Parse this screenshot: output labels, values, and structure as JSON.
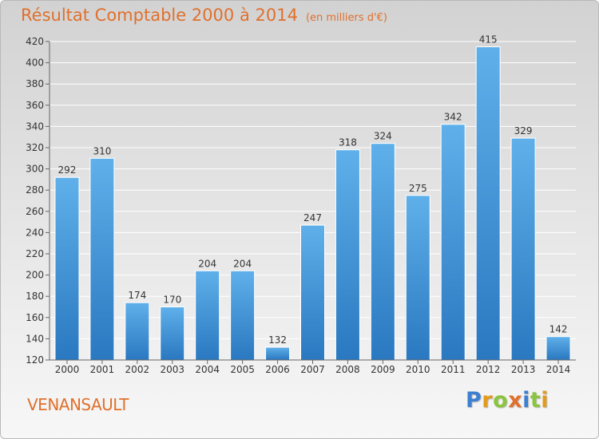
{
  "header": {
    "title": "Résultat Comptable 2000 à 2014",
    "subtitle": "(en milliers d'€)"
  },
  "footer": {
    "place": "VENANSAULT",
    "logo_letters": [
      {
        "ch": "P",
        "color": "#3d7fd0"
      },
      {
        "ch": "r",
        "color": "#e39b1f"
      },
      {
        "ch": "o",
        "color": "#8bc53f"
      },
      {
        "ch": "x",
        "color": "#e0702c"
      },
      {
        "ch": "i",
        "color": "#3d7fd0"
      },
      {
        "ch": "t",
        "color": "#8bc53f"
      },
      {
        "ch": "i",
        "color": "#e39b1f"
      }
    ]
  },
  "colors": {
    "accent": "#e0702c",
    "bar_top": "#5fb0ea",
    "bar_bottom": "#2a78c0"
  },
  "chart_data": {
    "type": "bar",
    "title": "Résultat Comptable 2000 à 2014",
    "subtitle": "(en milliers d'€)",
    "xlabel": "",
    "ylabel": "",
    "categories": [
      "2000",
      "2001",
      "2002",
      "2003",
      "2004",
      "2005",
      "2006",
      "2007",
      "2008",
      "2009",
      "2010",
      "2011",
      "2012",
      "2013",
      "2014"
    ],
    "values": [
      292,
      310,
      174,
      170,
      204,
      204,
      132,
      247,
      318,
      324,
      275,
      342,
      415,
      329,
      142
    ],
    "ylim": [
      120,
      420
    ],
    "yticks": [
      120,
      140,
      160,
      180,
      200,
      220,
      240,
      260,
      280,
      300,
      320,
      340,
      360,
      380,
      400,
      420
    ],
    "grid": true,
    "legend": "none"
  }
}
